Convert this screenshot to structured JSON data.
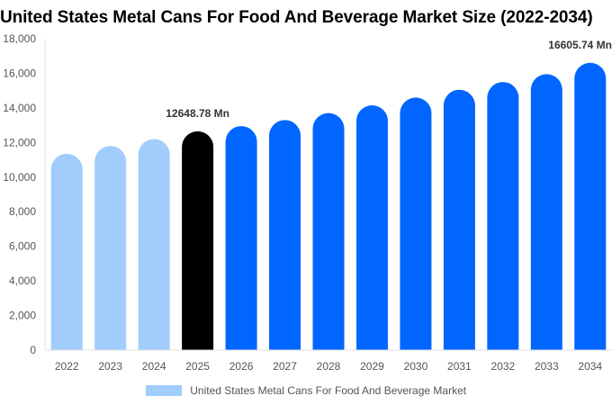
{
  "chart_data": {
    "type": "bar",
    "title": "United States Metal Cans For Food And Beverage Market Size (2022-2034)",
    "categories": [
      "2022",
      "2023",
      "2024",
      "2025",
      "2026",
      "2027",
      "2028",
      "2029",
      "2030",
      "2031",
      "2032",
      "2033",
      "2034"
    ],
    "series": [
      {
        "name": "United States Metal Cans For Food And Beverage Market",
        "values": [
          11350,
          11800,
          12200,
          12648.78,
          12950,
          13300,
          13700,
          14150,
          14600,
          15050,
          15500,
          15950,
          16605.74
        ]
      }
    ],
    "ylim": [
      0,
      18000
    ],
    "yticks": [
      "0",
      "2,000",
      "4,000",
      "6,000",
      "8,000",
      "10,000",
      "12,000",
      "14,000",
      "16,000",
      "18,000"
    ],
    "data_labels": [
      {
        "index": 3,
        "text": "12648.78 Mn"
      },
      {
        "index": 12,
        "text": "16605.74 Mn"
      }
    ],
    "colors": {
      "historical": "#a0cdfc",
      "current": "#000000",
      "forecast": "#0066ff"
    },
    "legend": "bottom-center",
    "grid": false
  }
}
